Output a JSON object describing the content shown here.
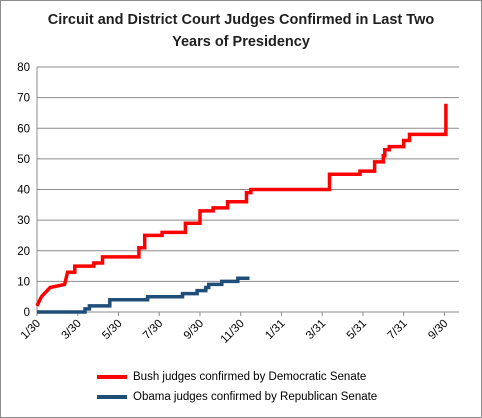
{
  "chart_data": {
    "type": "line",
    "title_line1": "Circuit and District Court Judges Confirmed in Last Two",
    "title_line2": "Years of Presidency",
    "xlabel": "",
    "ylabel": "",
    "ylim": [
      0,
      80
    ],
    "yticks": [
      0,
      10,
      20,
      30,
      40,
      50,
      60,
      70,
      80
    ],
    "x_tick_labels": [
      "1/30",
      "3/30",
      "5/30",
      "7/30",
      "9/30",
      "11/30",
      "1/31",
      "3/31",
      "5/31",
      "7/31",
      "9/30"
    ],
    "grid": true,
    "legend_placement": "bottom",
    "series": [
      {
        "name": "Bush judges confirmed by Democratic Senate",
        "color": "#ff0000",
        "step": true,
        "points": [
          [
            0,
            2
          ],
          [
            0.15,
            5
          ],
          [
            0.45,
            8
          ],
          [
            0.95,
            9
          ],
          [
            1.05,
            13
          ],
          [
            1.3,
            13
          ],
          [
            1.3,
            15
          ],
          [
            1.95,
            15
          ],
          [
            1.95,
            16
          ],
          [
            2.25,
            16
          ],
          [
            2.25,
            18
          ],
          [
            3.5,
            18
          ],
          [
            3.5,
            21
          ],
          [
            3.7,
            21
          ],
          [
            3.7,
            25
          ],
          [
            4.3,
            25
          ],
          [
            4.3,
            26
          ],
          [
            5.1,
            26
          ],
          [
            5.1,
            29
          ],
          [
            5.6,
            29
          ],
          [
            5.6,
            33
          ],
          [
            6.05,
            33
          ],
          [
            6.05,
            34
          ],
          [
            6.55,
            34
          ],
          [
            6.55,
            36
          ],
          [
            7.2,
            36
          ],
          [
            7.2,
            39
          ],
          [
            7.35,
            39
          ],
          [
            7.35,
            40
          ],
          [
            10.05,
            40
          ],
          [
            10.05,
            45
          ],
          [
            11.1,
            45
          ],
          [
            11.1,
            46
          ],
          [
            11.6,
            46
          ],
          [
            11.6,
            49
          ],
          [
            11.9,
            49
          ],
          [
            11.9,
            51
          ],
          [
            11.95,
            51
          ],
          [
            11.95,
            53
          ],
          [
            12.1,
            53
          ],
          [
            12.1,
            54
          ],
          [
            12.6,
            54
          ],
          [
            12.6,
            56
          ],
          [
            12.8,
            56
          ],
          [
            12.8,
            58
          ],
          [
            14.05,
            58
          ],
          [
            14.05,
            68
          ]
        ]
      },
      {
        "name": "Obama judges confirmed by Republican Senate",
        "color": "#1f4e79",
        "step": true,
        "points": [
          [
            0,
            0
          ],
          [
            1.65,
            0
          ],
          [
            1.65,
            1
          ],
          [
            1.8,
            1
          ],
          [
            1.8,
            2
          ],
          [
            2.5,
            2
          ],
          [
            2.5,
            4
          ],
          [
            3.8,
            4
          ],
          [
            3.8,
            5
          ],
          [
            5.0,
            5
          ],
          [
            5.0,
            6
          ],
          [
            5.5,
            6
          ],
          [
            5.5,
            7
          ],
          [
            5.8,
            7
          ],
          [
            5.8,
            8
          ],
          [
            5.9,
            8
          ],
          [
            5.9,
            9
          ],
          [
            6.35,
            9
          ],
          [
            6.35,
            10
          ],
          [
            6.9,
            10
          ],
          [
            6.9,
            11
          ],
          [
            7.3,
            11
          ]
        ]
      }
    ]
  }
}
